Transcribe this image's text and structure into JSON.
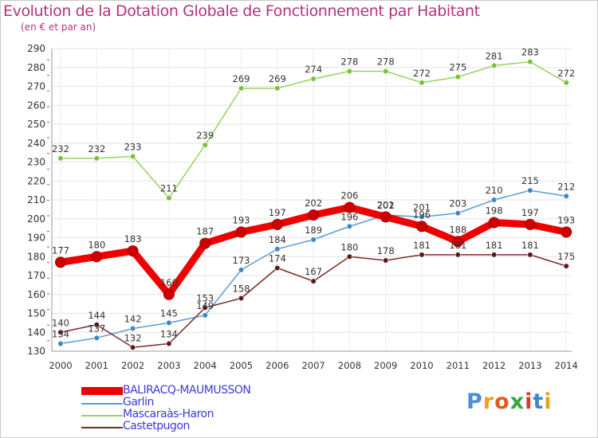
{
  "header": {
    "title": "Evolution de la Dotation Globale de Fonctionnement par Habitant",
    "subtitle": "(en € et par an)"
  },
  "logo": {
    "text": "Proxiti",
    "colors": [
      "#4a8fd6",
      "#f0a020",
      "#e05a20",
      "#2fa838",
      "#d83a2a",
      "#3a86d0",
      "#e8a218"
    ]
  },
  "chart_data": {
    "type": "line",
    "title": "Evolution de la Dotation Globale de Fonctionnement par Habitant",
    "subtitle": "(en € et par an)",
    "xlabel": "",
    "ylabel": "",
    "x": [
      "2000",
      "2001",
      "2002",
      "2003",
      "2004",
      "2005",
      "2006",
      "2007",
      "2008",
      "2009",
      "2010",
      "2011",
      "2012",
      "2013",
      "2014"
    ],
    "ylim": [
      130,
      290
    ],
    "yticks": [
      130,
      140,
      150,
      160,
      170,
      180,
      190,
      200,
      210,
      220,
      230,
      240,
      250,
      260,
      270,
      280,
      290
    ],
    "grid": true,
    "legend": "bottom-left",
    "series": [
      {
        "name": "BALIRACQ-MAUMUSSON",
        "color": "#ee0000",
        "marker": "#cc0000",
        "emphasis": true,
        "values": [
          177,
          180,
          183,
          160,
          187,
          193,
          197,
          202,
          206,
          201,
          196,
          188,
          198,
          197,
          193
        ],
        "labels": [
          "177",
          "180",
          "183",
          "160",
          "187",
          "193",
          "197",
          "202",
          "206",
          "201",
          "196",
          "188",
          "198",
          "197",
          "193"
        ]
      },
      {
        "name": "Garlin",
        "color": "#5b9bd2",
        "marker": "#3e86c4",
        "values": [
          134,
          137,
          142,
          145,
          149,
          173,
          184,
          189,
          196,
          202,
          201,
          203,
          210,
          215,
          212
        ],
        "labels": [
          "134",
          "137",
          "142",
          "145",
          "149",
          "173",
          "184",
          "189",
          "196",
          "202",
          "201",
          "203",
          "210",
          "215",
          "212"
        ]
      },
      {
        "name": "Mascaraàs-Haron",
        "color": "#95d45c",
        "marker": "#79c23e",
        "values": [
          232,
          232,
          233,
          211,
          239,
          269,
          269,
          274,
          278,
          278,
          272,
          275,
          281,
          283,
          272
        ],
        "labels": [
          "232",
          "232",
          "233",
          "211",
          "239",
          "269",
          "269",
          "274",
          "278",
          "278",
          "272",
          "275",
          "281",
          "283",
          "272"
        ]
      },
      {
        "name": "Castetpugon",
        "color": "#7b2a2a",
        "marker": "#601818",
        "values": [
          140,
          144,
          132,
          134,
          153,
          158,
          174,
          167,
          180,
          178,
          181,
          181,
          181,
          181,
          175
        ],
        "labels": [
          "140",
          "144",
          "132",
          "134",
          "153",
          "158",
          "174",
          "167",
          "180",
          "178",
          "181",
          "181",
          "181",
          "181",
          "175"
        ]
      }
    ]
  }
}
